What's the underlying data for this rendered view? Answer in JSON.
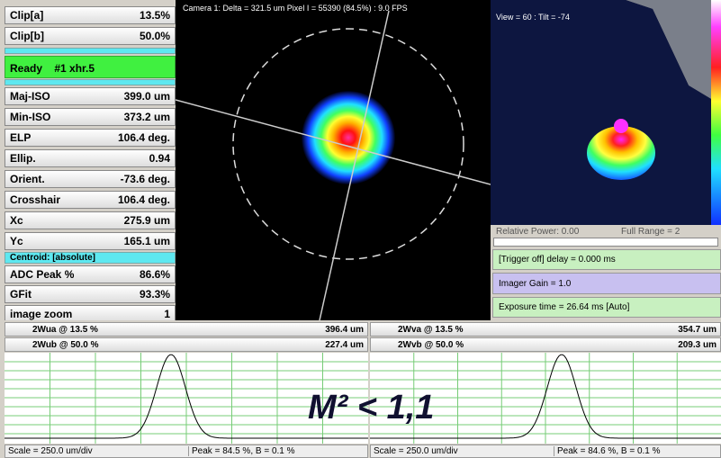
{
  "left_panel": {
    "clip_rows": [
      {
        "label": "Clip[a]",
        "value": "13.5%"
      },
      {
        "label": "Clip[b]",
        "value": "50.0%"
      }
    ],
    "status": "Ready    #1 xhr.5",
    "rows": [
      {
        "label": "Maj-ISO",
        "value": "399.0 um"
      },
      {
        "label": "Min-ISO",
        "value": "373.2 um"
      },
      {
        "label": "ELP",
        "value": "106.4 deg."
      },
      {
        "label": "Ellip.",
        "value": "0.94"
      },
      {
        "label": "Orient.",
        "value": "-73.6 deg."
      },
      {
        "label": "Crosshair",
        "value": "106.4 deg."
      },
      {
        "label": "Xc",
        "value": "275.9 um"
      },
      {
        "label": "Yc",
        "value": "165.1 um"
      }
    ],
    "centroid": "Centroid: [absolute]",
    "bottom_rows": [
      {
        "label": "ADC Peak %",
        "value": "86.6%"
      },
      {
        "label": "GFit",
        "value": "93.3%"
      },
      {
        "label": "image zoom",
        "value": "1"
      }
    ]
  },
  "camera_header": "Camera 1: Delta = 321.5 um Pixel I = 55390 (84.5%) :   9.0 FPS",
  "view_label": "View = 60 : Tilt = -74",
  "controls": {
    "relative_power": "Relative Power: 0.00",
    "full_range": "Full Range = 2",
    "trigger": "[Trigger off] delay = 0.000 ms",
    "gain": "Imager Gain = 1.0",
    "exposure": "Exposure time = 26.64 ms [Auto]"
  },
  "profiles": [
    {
      "row_a_label": "2Wua @ 13.5 %",
      "row_a_value": "396.4 um",
      "row_b_label": "2Wub @ 50.0 %",
      "row_b_value": "227.4 um",
      "scale": "Scale = 250.0 um/div",
      "peak": "Peak = 84.5 %,  B = 0.1 %"
    },
    {
      "row_a_label": "2Wva @ 13.5 %",
      "row_a_value": "354.7 um",
      "row_b_label": "2Wvb @ 50.0 %",
      "row_b_value": "209.3 um",
      "scale": "Scale = 250.0 um/div",
      "peak": "Peak = 84.6 %,  B = 0.1 %"
    }
  ],
  "overlay": "M² < 1,1"
}
